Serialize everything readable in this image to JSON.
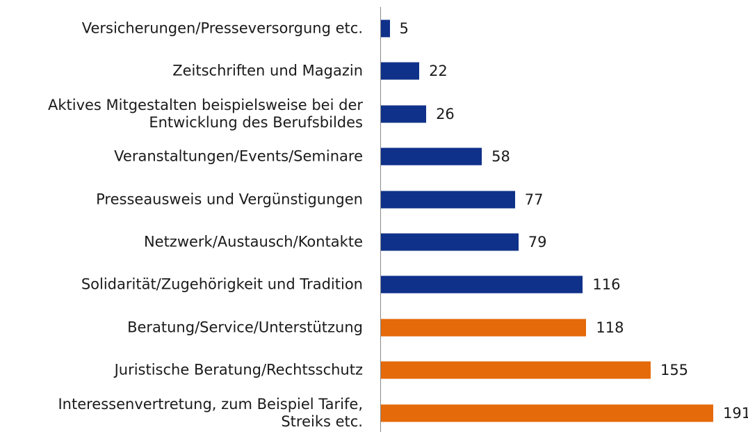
{
  "chart_data": {
    "type": "bar",
    "orientation": "horizontal",
    "categories": [
      "Versicherungen/Presseversorgung etc.",
      "Zeitschriften und Magazin",
      "Aktives Mitgestalten beispielsweise bei der\nEntwicklung des Berufsbildes",
      "Veranstaltungen/Events/Seminare",
      "Presseausweis und Vergünstigungen",
      "Netzwerk/Austausch/Kontakte",
      "Solidarität/Zugehörigkeit und Tradition",
      "Beratung/Service/Unterstützung",
      "Juristische Beratung/Rechtsschutz",
      "Interessenvertretung, zum Beispiel Tarife,\nStreiks etc."
    ],
    "values": [
      5,
      22,
      26,
      58,
      77,
      79,
      116,
      118,
      155,
      191
    ],
    "colors": [
      "#10318a",
      "#10318a",
      "#10318a",
      "#10318a",
      "#10318a",
      "#10318a",
      "#10318a",
      "#e46a0a",
      "#e46a0a",
      "#e46a0a"
    ]
  }
}
